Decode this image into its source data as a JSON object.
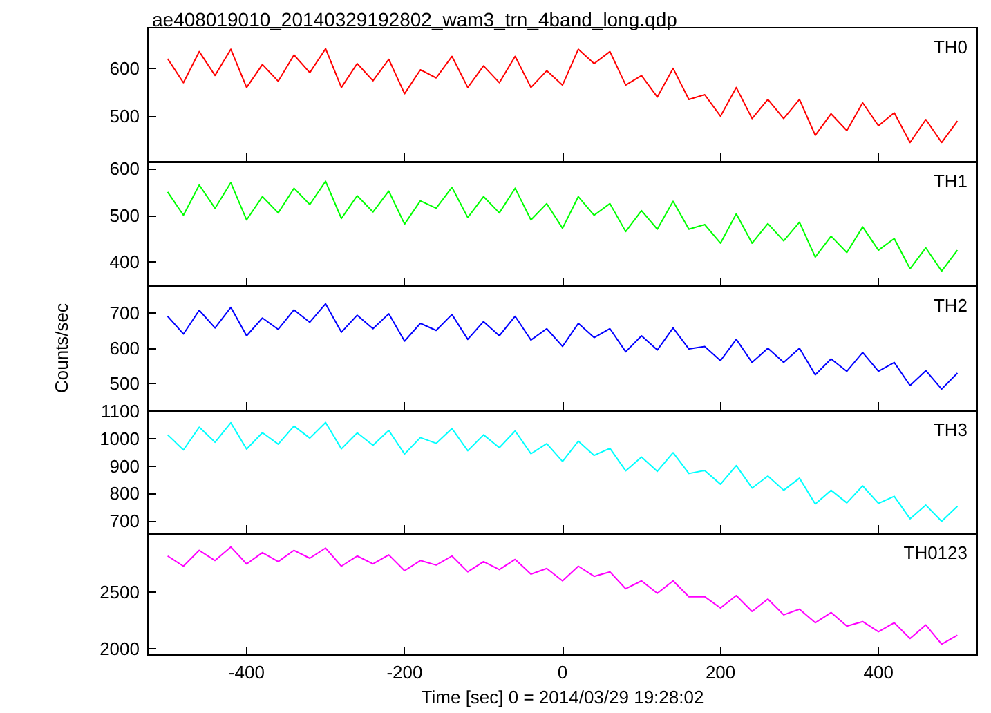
{
  "chart_data": [
    {
      "type": "line",
      "title": "ae408019010_20140329192802_wam3_trn_4band_long.qdp",
      "legend": "top right",
      "tick_labels": "y",
      "xlim": [
        -525,
        525
      ],
      "xticks": [
        -400,
        -200,
        0,
        200,
        400
      ],
      "ylim": [
        405,
        685
      ],
      "yticks": [
        500,
        600
      ],
      "x": [
        -500,
        -480,
        -460,
        -440,
        -420,
        -400,
        -380,
        -360,
        -340,
        -320,
        -300,
        -280,
        -260,
        -240,
        -220,
        -200,
        -180,
        -160,
        -140,
        -120,
        -100,
        -80,
        -60,
        -40,
        -20,
        0,
        20,
        40,
        60,
        80,
        100,
        120,
        140,
        160,
        180,
        200,
        220,
        240,
        260,
        280,
        300,
        320,
        340,
        360,
        380,
        400,
        420,
        440,
        460,
        480,
        500
      ],
      "series": [
        {
          "name": "TH0",
          "color": "#ff0000",
          "values": [
            620,
            570,
            635,
            585,
            640,
            560,
            608,
            573,
            628,
            591,
            641,
            560,
            610,
            574,
            619,
            547,
            597,
            580,
            625,
            560,
            605,
            570,
            625,
            560,
            595,
            565,
            640,
            610,
            635,
            565,
            585,
            540,
            600,
            535,
            545,
            500,
            560,
            495,
            535,
            495,
            535,
            460,
            505,
            470,
            528,
            480,
            507,
            445,
            493,
            445,
            490
          ]
        }
      ]
    },
    {
      "type": "line",
      "legend": "top right",
      "tick_labels": "y",
      "xlim": [
        -525,
        525
      ],
      "xticks": [
        -400,
        -200,
        0,
        200,
        400
      ],
      "ylim": [
        348,
        615
      ],
      "yticks": [
        400,
        500,
        600
      ],
      "x": [
        -500,
        -480,
        -460,
        -440,
        -420,
        -400,
        -380,
        -360,
        -340,
        -320,
        -300,
        -280,
        -260,
        -240,
        -220,
        -200,
        -180,
        -160,
        -140,
        -120,
        -100,
        -80,
        -60,
        -40,
        -20,
        0,
        20,
        40,
        60,
        80,
        100,
        120,
        140,
        160,
        180,
        200,
        220,
        240,
        260,
        280,
        300,
        320,
        340,
        360,
        380,
        400,
        420,
        440,
        460,
        480,
        500
      ],
      "series": [
        {
          "name": "TH1",
          "color": "#00ff00",
          "values": [
            550,
            500,
            565,
            515,
            570,
            490,
            540,
            505,
            558,
            523,
            573,
            493,
            542,
            507,
            552,
            481,
            531,
            515,
            560,
            495,
            540,
            505,
            558,
            490,
            525,
            472,
            540,
            500,
            525,
            465,
            510,
            470,
            530,
            470,
            480,
            440,
            503,
            440,
            482,
            445,
            485,
            410,
            455,
            420,
            475,
            425,
            450,
            385,
            430,
            380,
            425
          ]
        }
      ]
    },
    {
      "type": "line",
      "ylabel": "Counts/sec",
      "legend": "top right",
      "tick_labels": "y",
      "xlim": [
        -525,
        525
      ],
      "xticks": [
        -400,
        -200,
        0,
        200,
        400
      ],
      "ylim": [
        425,
        775
      ],
      "yticks": [
        500,
        600,
        700
      ],
      "x": [
        -500,
        -480,
        -460,
        -440,
        -420,
        -400,
        -380,
        -360,
        -340,
        -320,
        -300,
        -280,
        -260,
        -240,
        -220,
        -200,
        -180,
        -160,
        -140,
        -120,
        -100,
        -80,
        -60,
        -40,
        -20,
        0,
        20,
        40,
        60,
        80,
        100,
        120,
        140,
        160,
        180,
        200,
        220,
        240,
        260,
        280,
        300,
        320,
        340,
        360,
        380,
        400,
        420,
        440,
        460,
        480,
        500
      ],
      "series": [
        {
          "name": "TH2",
          "color": "#0000ff",
          "values": [
            690,
            640,
            707,
            657,
            715,
            635,
            685,
            653,
            708,
            673,
            725,
            645,
            693,
            655,
            697,
            620,
            670,
            650,
            695,
            625,
            675,
            635,
            690,
            623,
            655,
            605,
            670,
            630,
            655,
            590,
            635,
            595,
            657,
            598,
            605,
            565,
            625,
            560,
            600,
            560,
            600,
            525,
            570,
            535,
            588,
            535,
            560,
            495,
            537,
            485,
            530
          ]
        }
      ]
    },
    {
      "type": "line",
      "legend": "top right",
      "tick_labels": "y",
      "xlim": [
        -525,
        525
      ],
      "xticks": [
        -400,
        -200,
        0,
        200,
        400
      ],
      "ylim": [
        655,
        1103
      ],
      "yticks": [
        700,
        800,
        900,
        1000,
        1100
      ],
      "x": [
        -500,
        -480,
        -460,
        -440,
        -420,
        -400,
        -380,
        -360,
        -340,
        -320,
        -300,
        -280,
        -260,
        -240,
        -220,
        -200,
        -180,
        -160,
        -140,
        -120,
        -100,
        -80,
        -60,
        -40,
        -20,
        0,
        20,
        40,
        60,
        80,
        100,
        120,
        140,
        160,
        180,
        200,
        220,
        240,
        260,
        280,
        300,
        320,
        340,
        360,
        380,
        400,
        420,
        440,
        460,
        480,
        500
      ],
      "series": [
        {
          "name": "TH3",
          "color": "#00ffff",
          "values": [
            1014,
            959,
            1042,
            987,
            1058,
            962,
            1022,
            980,
            1046,
            1002,
            1059,
            963,
            1021,
            976,
            1030,
            944,
            1004,
            983,
            1037,
            956,
            1014,
            967,
            1028,
            945,
            982,
            917,
            991,
            939,
            965,
            883,
            933,
            881,
            949,
            873,
            884,
            834,
            902,
            820,
            864,
            812,
            856,
            762,
            812,
            766,
            828,
            764,
            790,
            708,
            758,
            699,
            754
          ]
        }
      ]
    },
    {
      "type": "line",
      "xlabel": "Time [sec] 0 = 2014/03/29 19:28:02",
      "legend": "top right",
      "xlim": [
        -525,
        525
      ],
      "xticks": [
        -400,
        -200,
        0,
        200,
        400
      ],
      "ylim": [
        1945,
        3020
      ],
      "yticks": [
        2000,
        2500
      ],
      "x": [
        -500,
        -480,
        -460,
        -440,
        -420,
        -400,
        -380,
        -360,
        -340,
        -320,
        -300,
        -280,
        -260,
        -240,
        -220,
        -200,
        -180,
        -160,
        -140,
        -120,
        -100,
        -80,
        -60,
        -40,
        -20,
        0,
        20,
        40,
        60,
        80,
        100,
        120,
        140,
        160,
        180,
        200,
        220,
        240,
        260,
        280,
        300,
        320,
        340,
        360,
        380,
        400,
        420,
        440,
        460,
        480,
        500
      ],
      "series": [
        {
          "name": "TH0123",
          "color": "#ff00ff",
          "values": [
            2820,
            2730,
            2870,
            2780,
            2900,
            2750,
            2850,
            2770,
            2870,
            2800,
            2890,
            2730,
            2820,
            2750,
            2830,
            2690,
            2780,
            2740,
            2820,
            2680,
            2770,
            2700,
            2790,
            2660,
            2710,
            2600,
            2730,
            2640,
            2680,
            2530,
            2600,
            2490,
            2600,
            2460,
            2460,
            2360,
            2470,
            2330,
            2440,
            2300,
            2350,
            2230,
            2320,
            2200,
            2240,
            2150,
            2230,
            2090,
            2210,
            2040,
            2120
          ]
        }
      ]
    }
  ]
}
